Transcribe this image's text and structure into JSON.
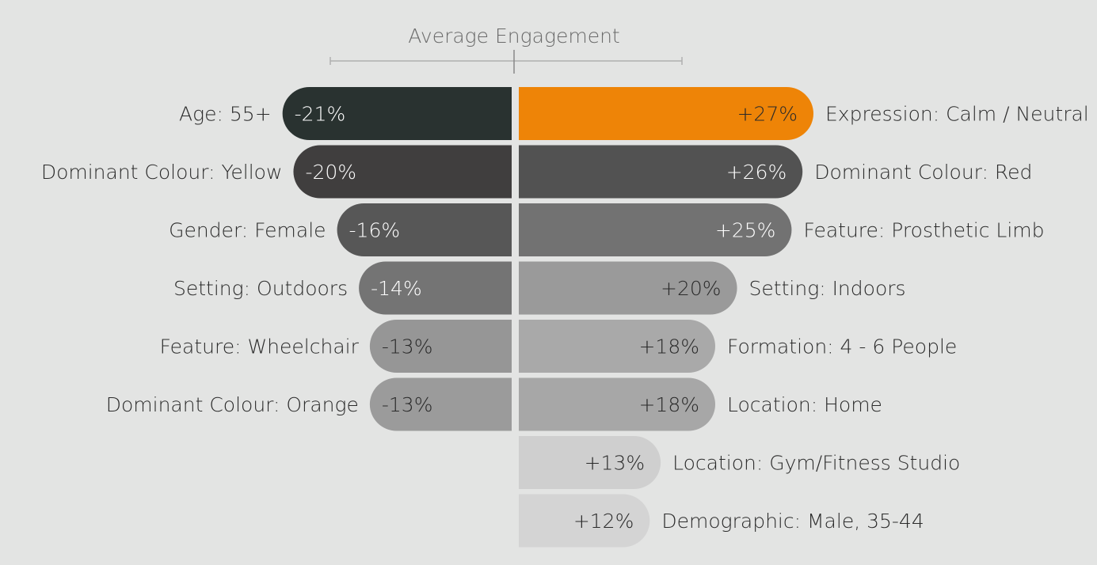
{
  "chart_data": {
    "type": "bar",
    "orientation": "diverging-horizontal",
    "title": "Average Engagement",
    "unit": "%",
    "negative": [
      {
        "label": "Age: 55+",
        "value": -21,
        "display": "-21%",
        "color": "#293230"
      },
      {
        "label": "Dominant Colour: Yellow",
        "value": -20,
        "display": "-20%",
        "color": "#403e3e"
      },
      {
        "label": "Gender: Female",
        "value": -16,
        "display": "-16%",
        "color": "#575757"
      },
      {
        "label": "Setting: Outdoors",
        "value": -14,
        "display": "-14%",
        "color": "#747474"
      },
      {
        "label": "Feature: Wheelchair",
        "value": -13,
        "display": "-13%",
        "color": "#969696"
      },
      {
        "label": "Dominant Colour: Orange",
        "value": -13,
        "display": "-13%",
        "color": "#9b9b9b"
      }
    ],
    "positive": [
      {
        "label": "Expression: Calm / Neutral",
        "value": 27,
        "display": "+27%",
        "color": "#ee8407"
      },
      {
        "label": "Dominant Colour: Red",
        "value": 26,
        "display": "+26%",
        "color": "#525252"
      },
      {
        "label": "Feature: Prosthetic Limb",
        "value": 25,
        "display": "+25%",
        "color": "#727272"
      },
      {
        "label": "Setting: Indoors",
        "value": 20,
        "display": "+20%",
        "color": "#9a9a9a"
      },
      {
        "label": "Formation: 4 - 6 People",
        "value": 18,
        "display": "+18%",
        "color": "#a9a9a9"
      },
      {
        "label": "Location: Home",
        "value": 18,
        "display": "+18%",
        "color": "#a7a7a7"
      },
      {
        "label": "Location: Gym/Fitness Studio",
        "value": 13,
        "display": "+13%",
        "color": "#cfcfcf"
      },
      {
        "label": "Demographic: Male, 35-44",
        "value": 12,
        "display": "+12%",
        "color": "#d4d4d4"
      }
    ]
  }
}
